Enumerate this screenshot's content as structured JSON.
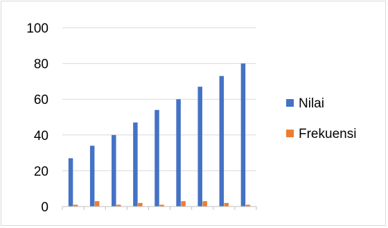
{
  "chart_data": {
    "type": "bar",
    "categories": [
      "",
      "",
      "",
      "",
      "",
      "",
      "",
      "",
      ""
    ],
    "series": [
      {
        "name": "Nilai",
        "color": "#4472c4",
        "values": [
          27,
          34,
          40,
          47,
          54,
          60,
          67,
          73,
          80
        ]
      },
      {
        "name": "Frekuensi",
        "color": "#ed7d31",
        "values": [
          1,
          3,
          1,
          2,
          1,
          3,
          3,
          2,
          1
        ]
      }
    ],
    "title": "",
    "xlabel": "",
    "ylabel": "",
    "ylim": [
      0,
      100
    ],
    "yticks": [
      0,
      20,
      40,
      60,
      80,
      100
    ],
    "grid": true,
    "legend_position": "right"
  }
}
